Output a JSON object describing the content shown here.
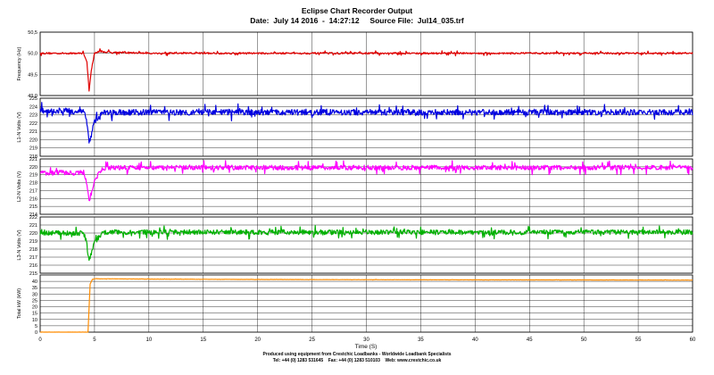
{
  "chart_data": {
    "type": "line",
    "title": "Eclipse Chart Recorder Output",
    "subtitle": "Date:  July 14 2016  -  14:27:12     Source File:  Jul14_035.trf",
    "xlabel": "Time (S)",
    "xlim": [
      0,
      60
    ],
    "x_ticks": [
      "0",
      "5",
      "10",
      "15",
      "20",
      "25",
      "30",
      "35",
      "40",
      "45",
      "50",
      "55",
      "60"
    ],
    "grid": true,
    "panels": [
      {
        "ylabel": "Frequency  (Hz)",
        "ylim": [
          49,
          50.5
        ],
        "y_ticks": [
          "50,5",
          "50,0",
          "49,5",
          "49,0"
        ],
        "color": "#e00000",
        "series": {
          "x": [
            0,
            1,
            2,
            3,
            4,
            4.3,
            4.5,
            4.7,
            5.0,
            5.5,
            6,
            10,
            20,
            30,
            40,
            50,
            60
          ],
          "values": [
            50.0,
            50.0,
            50.0,
            50.0,
            50.0,
            49.8,
            49.1,
            49.6,
            50.0,
            50.05,
            50.03,
            50.0,
            50.0,
            50.0,
            50.0,
            50.0,
            50.0
          ],
          "noise": 0.02
        }
      },
      {
        "ylabel": "L1-N Volts  (V)",
        "ylim": [
          218,
          225
        ],
        "y_ticks": [
          "225",
          "224",
          "223",
          "222",
          "221",
          "220",
          "219",
          "218"
        ],
        "color": "#0000e0",
        "series": {
          "x": [
            0,
            1,
            2,
            3,
            4,
            4.3,
            4.5,
            4.7,
            5.0,
            5.5,
            6,
            10,
            20,
            30,
            40,
            50,
            60
          ],
          "values": [
            223.5,
            223.4,
            223.5,
            223.4,
            223.5,
            222.0,
            219.6,
            220.6,
            222.2,
            223.0,
            223.3,
            223.3,
            223.3,
            223.3,
            223.3,
            223.3,
            223.3
          ],
          "noise": 0.35
        }
      },
      {
        "ylabel": "L2-N Volts  (V)",
        "ylim": [
          214,
          221
        ],
        "y_ticks": [
          "221",
          "220",
          "219",
          "218",
          "217",
          "216",
          "215",
          "214"
        ],
        "color": "#ff00ff",
        "series": {
          "x": [
            0,
            1,
            2,
            3,
            4,
            4.3,
            4.5,
            4.7,
            5.0,
            5.5,
            6,
            10,
            20,
            30,
            40,
            50,
            60
          ],
          "values": [
            219.3,
            219.2,
            219.3,
            219.2,
            219.3,
            217.8,
            215.6,
            216.7,
            218.3,
            219.4,
            219.9,
            219.9,
            219.9,
            219.9,
            219.9,
            219.9,
            219.9
          ],
          "noise": 0.3
        }
      },
      {
        "ylabel": "L3-N Volts  (V)",
        "ylim": [
          215,
          222
        ],
        "y_ticks": [
          "222",
          "221",
          "220",
          "219",
          "218",
          "217",
          "216",
          "215"
        ],
        "color": "#00b000",
        "series": {
          "x": [
            0,
            1,
            2,
            3,
            4,
            4.3,
            4.5,
            4.7,
            5.0,
            5.5,
            6,
            10,
            20,
            30,
            40,
            50,
            60
          ],
          "values": [
            220.0,
            220.0,
            220.0,
            220.0,
            220.0,
            218.6,
            216.6,
            217.5,
            218.8,
            219.7,
            220.1,
            220.1,
            220.1,
            220.1,
            220.1,
            220.1,
            220.1
          ],
          "noise": 0.3
        }
      },
      {
        "ylabel": "Total kW  (kW)",
        "ylim": [
          0,
          45
        ],
        "y_ticks": [
          "40",
          "35",
          "30",
          "25",
          "20",
          "15",
          "10",
          "5",
          "0"
        ],
        "color": "#ff8c00",
        "series": {
          "x": [
            0,
            4.4,
            4.6,
            4.8,
            5.0,
            6,
            10,
            20,
            30,
            40,
            50,
            60
          ],
          "values": [
            0,
            0,
            38,
            41.5,
            42,
            42,
            41.8,
            41.5,
            41.3,
            41.2,
            41.1,
            41.0
          ],
          "noise": 0.08
        }
      }
    ]
  },
  "footer": {
    "line1": "Produced using equipment from Crestchic Loadbanks - Worldwide Loadbank Specialists",
    "line2": "Tel: +44 (0) 1283 531645    Fax: +44 (0) 1283 510103    Web: www.crestchic.co.uk"
  }
}
